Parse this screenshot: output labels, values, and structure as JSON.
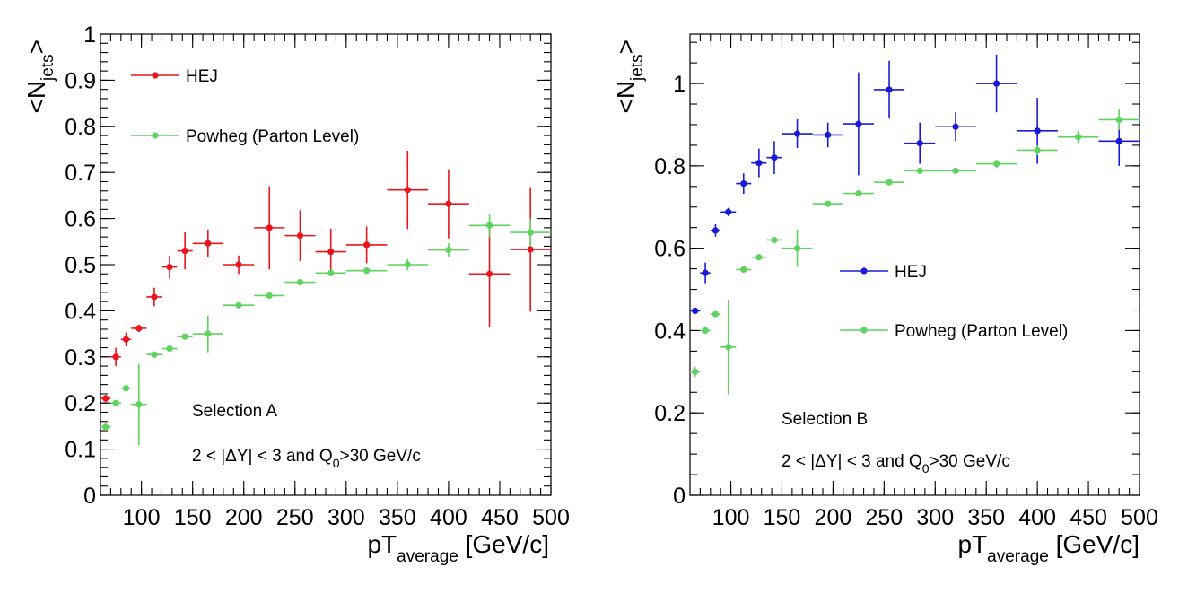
{
  "chart_data": [
    {
      "type": "scatter",
      "xlabel": {
        "main": "pT",
        "sub": "average",
        "unit": " [GeV/c]"
      },
      "ylabel": {
        "open": "<N",
        "sub": "jets",
        "close": ">"
      },
      "xlim": [
        60,
        500
      ],
      "ylim": [
        0,
        1
      ],
      "x_ticks": [
        "100",
        "150",
        "200",
        "250",
        "300",
        "350",
        "400",
        "450",
        "500"
      ],
      "y_ticks": [
        "0",
        "0.1",
        "0.2",
        "0.3",
        "0.4",
        "0.5",
        "0.6",
        "0.7",
        "0.8",
        "0.9",
        "1"
      ],
      "grid": false,
      "annotations": {
        "selection": "Selection A",
        "cut_pre": "2 < |ΔY| < 3 and Q",
        "cut_sub": "0",
        "cut_post": ">30 GeV/c"
      },
      "legend_position": "top-left",
      "series": [
        {
          "name": "HEJ",
          "color": "#e8141e",
          "points": [
            {
              "x": 65,
              "xerr": 5,
              "y": 0.21,
              "yerr": 0.008
            },
            {
              "x": 75,
              "xerr": 5,
              "y": 0.3,
              "yerr": 0.02
            },
            {
              "x": 85,
              "xerr": 5,
              "y": 0.338,
              "yerr": 0.015
            },
            {
              "x": 97.5,
              "xerr": 7.5,
              "y": 0.362,
              "yerr": 0.008
            },
            {
              "x": 112.5,
              "xerr": 7.5,
              "y": 0.43,
              "yerr": 0.02
            },
            {
              "x": 127.5,
              "xerr": 7.5,
              "y": 0.495,
              "yerr": 0.025
            },
            {
              "x": 142.5,
              "xerr": 7.5,
              "y": 0.53,
              "yerr": 0.04
            },
            {
              "x": 165,
              "xerr": 15,
              "y": 0.546,
              "yerr": 0.03
            },
            {
              "x": 195,
              "xerr": 15,
              "y": 0.5,
              "yerr": 0.02
            },
            {
              "x": 225,
              "xerr": 15,
              "y": 0.58,
              "yerr": 0.09
            },
            {
              "x": 255,
              "xerr": 15,
              "y": 0.563,
              "yerr": 0.055
            },
            {
              "x": 285,
              "xerr": 15,
              "y": 0.528,
              "yerr": 0.05
            },
            {
              "x": 320,
              "xerr": 20,
              "y": 0.543,
              "yerr": 0.04
            },
            {
              "x": 360,
              "xerr": 20,
              "y": 0.662,
              "yerr": 0.085
            },
            {
              "x": 400,
              "xerr": 20,
              "y": 0.632,
              "yerr": 0.075
            },
            {
              "x": 440,
              "xerr": 20,
              "y": 0.48,
              "yerr": 0.115
            },
            {
              "x": 480,
              "xerr": 20,
              "y": 0.533,
              "yerr": 0.135
            }
          ]
        },
        {
          "name": "Powheg (Parton Level)",
          "color": "#5fd25f",
          "points": [
            {
              "x": 65,
              "xerr": 5,
              "y": 0.148,
              "yerr": 0.008
            },
            {
              "x": 75,
              "xerr": 5,
              "y": 0.2,
              "yerr": 0.005
            },
            {
              "x": 85,
              "xerr": 5,
              "y": 0.232,
              "yerr": 0.005
            },
            {
              "x": 97.5,
              "xerr": 7.5,
              "y": 0.197,
              "yerr": 0.088
            },
            {
              "x": 112.5,
              "xerr": 7.5,
              "y": 0.305,
              "yerr": 0.005
            },
            {
              "x": 127.5,
              "xerr": 7.5,
              "y": 0.318,
              "yerr": 0.005
            },
            {
              "x": 142.5,
              "xerr": 7.5,
              "y": 0.344,
              "yerr": 0.005
            },
            {
              "x": 165,
              "xerr": 15,
              "y": 0.35,
              "yerr": 0.04
            },
            {
              "x": 195,
              "xerr": 15,
              "y": 0.412,
              "yerr": 0.004
            },
            {
              "x": 225,
              "xerr": 15,
              "y": 0.433,
              "yerr": 0.004
            },
            {
              "x": 255,
              "xerr": 15,
              "y": 0.462,
              "yerr": 0.007
            },
            {
              "x": 285,
              "xerr": 15,
              "y": 0.482,
              "yerr": 0.007
            },
            {
              "x": 320,
              "xerr": 20,
              "y": 0.487,
              "yerr": 0.007
            },
            {
              "x": 360,
              "xerr": 20,
              "y": 0.5,
              "yerr": 0.012
            },
            {
              "x": 400,
              "xerr": 20,
              "y": 0.532,
              "yerr": 0.015
            },
            {
              "x": 440,
              "xerr": 20,
              "y": 0.585,
              "yerr": 0.025
            },
            {
              "x": 480,
              "xerr": 20,
              "y": 0.57,
              "yerr": 0.03
            }
          ]
        }
      ]
    },
    {
      "type": "scatter",
      "xlabel": {
        "main": "pT",
        "sub": "average",
        "unit": " [GeV/c]"
      },
      "ylabel": {
        "open": "<N",
        "sub": "jets",
        "close": ">"
      },
      "xlim": [
        60,
        500
      ],
      "ylim": [
        0,
        1.12
      ],
      "x_ticks": [
        "100",
        "150",
        "200",
        "250",
        "300",
        "350",
        "400",
        "450",
        "500"
      ],
      "y_ticks": [
        "0",
        "0.2",
        "0.4",
        "0.6",
        "0.8",
        "1"
      ],
      "grid": false,
      "annotations": {
        "selection": "Selection B",
        "cut_pre": "2 < |ΔY| < 3 and Q",
        "cut_sub": "0",
        "cut_post": ">30 GeV/c"
      },
      "legend_position": "center-right",
      "series": [
        {
          "name": "HEJ",
          "color": "#1a1ad6",
          "points": [
            {
              "x": 65,
              "xerr": 5,
              "y": 0.448,
              "yerr": 0.006
            },
            {
              "x": 75,
              "xerr": 5,
              "y": 0.54,
              "yerr": 0.025
            },
            {
              "x": 85,
              "xerr": 5,
              "y": 0.643,
              "yerr": 0.015
            },
            {
              "x": 97.5,
              "xerr": 7.5,
              "y": 0.688,
              "yerr": 0.01
            },
            {
              "x": 112.5,
              "xerr": 7.5,
              "y": 0.757,
              "yerr": 0.025
            },
            {
              "x": 127.5,
              "xerr": 7.5,
              "y": 0.807,
              "yerr": 0.035
            },
            {
              "x": 142.5,
              "xerr": 7.5,
              "y": 0.82,
              "yerr": 0.04
            },
            {
              "x": 165,
              "xerr": 15,
              "y": 0.878,
              "yerr": 0.035
            },
            {
              "x": 195,
              "xerr": 15,
              "y": 0.875,
              "yerr": 0.03
            },
            {
              "x": 225,
              "xerr": 15,
              "y": 0.902,
              "yerr": 0.125
            },
            {
              "x": 255,
              "xerr": 15,
              "y": 0.985,
              "yerr": 0.07
            },
            {
              "x": 285,
              "xerr": 15,
              "y": 0.855,
              "yerr": 0.05
            },
            {
              "x": 320,
              "xerr": 20,
              "y": 0.895,
              "yerr": 0.035
            },
            {
              "x": 360,
              "xerr": 20,
              "y": 1.0,
              "yerr": 0.07
            },
            {
              "x": 400,
              "xerr": 20,
              "y": 0.885,
              "yerr": 0.08
            },
            {
              "x": 480,
              "xerr": 20,
              "y": 0.86,
              "yerr": 0.06
            }
          ]
        },
        {
          "name": "Powheg (Parton Level)",
          "color": "#5fd25f",
          "points": [
            {
              "x": 65,
              "xerr": 5,
              "y": 0.3,
              "yerr": 0.012
            },
            {
              "x": 75,
              "xerr": 5,
              "y": 0.4,
              "yerr": 0.005
            },
            {
              "x": 85,
              "xerr": 5,
              "y": 0.44,
              "yerr": 0.005
            },
            {
              "x": 97.5,
              "xerr": 7.5,
              "y": 0.36,
              "yerr": 0.115
            },
            {
              "x": 112.5,
              "xerr": 7.5,
              "y": 0.548,
              "yerr": 0.005
            },
            {
              "x": 127.5,
              "xerr": 7.5,
              "y": 0.578,
              "yerr": 0.005
            },
            {
              "x": 142.5,
              "xerr": 7.5,
              "y": 0.62,
              "yerr": 0.005
            },
            {
              "x": 165,
              "xerr": 15,
              "y": 0.6,
              "yerr": 0.045
            },
            {
              "x": 195,
              "xerr": 15,
              "y": 0.708,
              "yerr": 0.004
            },
            {
              "x": 225,
              "xerr": 15,
              "y": 0.733,
              "yerr": 0.004
            },
            {
              "x": 255,
              "xerr": 15,
              "y": 0.76,
              "yerr": 0.005
            },
            {
              "x": 285,
              "xerr": 15,
              "y": 0.788,
              "yerr": 0.005
            },
            {
              "x": 320,
              "xerr": 20,
              "y": 0.788,
              "yerr": 0.005
            },
            {
              "x": 360,
              "xerr": 20,
              "y": 0.805,
              "yerr": 0.01
            },
            {
              "x": 400,
              "xerr": 20,
              "y": 0.838,
              "yerr": 0.012
            },
            {
              "x": 440,
              "xerr": 20,
              "y": 0.87,
              "yerr": 0.015
            },
            {
              "x": 480,
              "xerr": 20,
              "y": 0.912,
              "yerr": 0.025
            }
          ]
        }
      ]
    }
  ]
}
